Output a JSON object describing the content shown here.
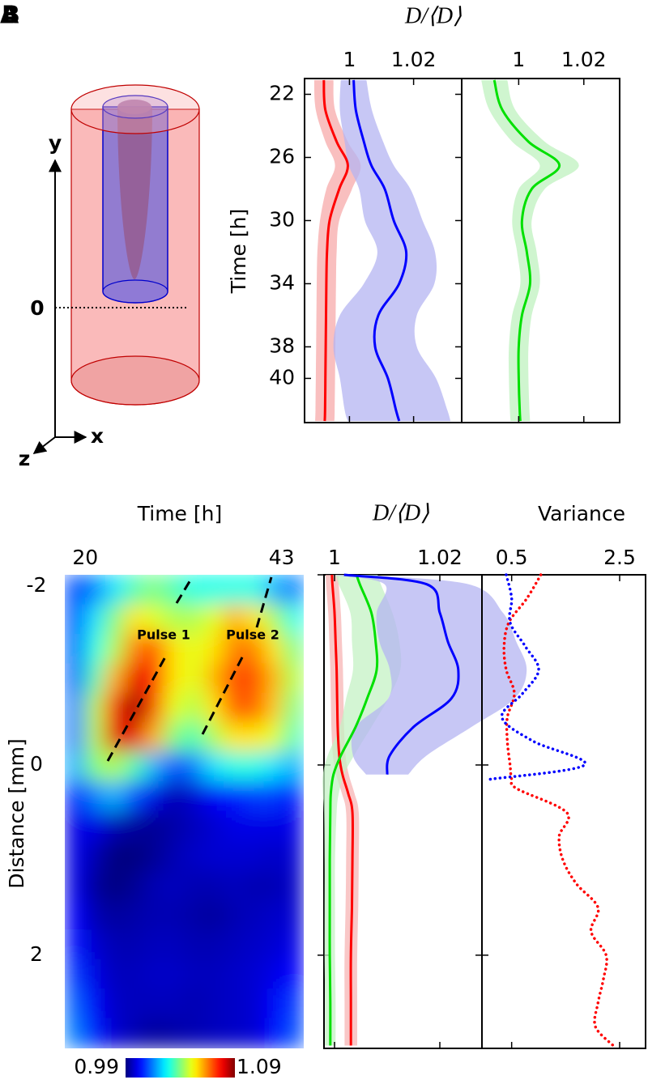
{
  "panel_labels": [
    "A",
    "B"
  ],
  "diagram": {
    "y_axis": "y",
    "origin": "0",
    "x_axis": "x",
    "z_axis": "z"
  },
  "chart_data": [
    {
      "type": "line",
      "xlabel": "D/⟨D⟩",
      "ylabel": "Time [h]",
      "y": [
        21.1,
        23,
        25,
        26.5,
        28,
        30,
        32,
        34,
        36,
        38,
        40,
        42,
        42.7
      ],
      "xlim": [
        0.986,
        1.035
      ],
      "xticks": [
        1,
        1.02
      ],
      "ylim": [
        21,
        42.8
      ],
      "yticks": [
        22,
        26,
        30,
        34,
        38,
        40
      ],
      "series": [
        {
          "color": "#ff0000",
          "band_color": "#f7aaaa",
          "values": [
            0.992,
            0.9925,
            0.996,
            0.9995,
            0.9968,
            0.9938,
            0.993,
            0.9928,
            0.9927,
            0.9926,
            0.9925,
            0.9924,
            0.9923
          ],
          "errors": [
            0.003,
            0.003,
            0.0035,
            0.004,
            0.004,
            0.003,
            0.003,
            0.003,
            0.003,
            0.003,
            0.003,
            0.003,
            0.003
          ]
        },
        {
          "color": "#0000ff",
          "band_color": "#b4b4f2",
          "values": [
            1.0013,
            1.002,
            1.0045,
            1.0068,
            1.011,
            1.0138,
            1.0177,
            1.0155,
            1.009,
            1.008,
            1.012,
            1.0145,
            1.0155
          ],
          "errors": [
            0.004,
            0.005,
            0.006,
            0.007,
            0.008,
            0.009,
            0.009,
            0.011,
            0.012,
            0.013,
            0.015,
            0.016,
            0.016
          ]
        }
      ]
    },
    {
      "type": "line",
      "y": [
        21.1,
        23,
        25,
        26.5,
        28,
        30,
        32,
        34,
        36,
        38,
        40,
        42,
        42.7
      ],
      "xlim": [
        0.9825,
        1.031
      ],
      "xticks": [
        1,
        1.02
      ],
      "ylim": [
        21,
        42.8
      ],
      "series": [
        {
          "color": "#00e000",
          "band_color": "#bff2bf",
          "values": [
            0.9925,
            0.995,
            1.003,
            1.0125,
            1.004,
            1.001,
            1.0025,
            1.0035,
            1.001,
            1.0,
            1.0,
            1.0003,
            1.0005
          ],
          "errors": [
            0.004,
            0.004,
            0.005,
            0.006,
            0.004,
            0.003,
            0.003,
            0.003,
            0.003,
            0.003,
            0.003,
            0.003,
            0.003
          ]
        }
      ]
    },
    {
      "type": "heatmap",
      "xlabel": "Time [h]",
      "ylabel": "Distance [mm]",
      "x": [
        18.8,
        21.1,
        23.4,
        25.8,
        28.1,
        30.4,
        32.8,
        35.1,
        37.4,
        39.8,
        42.1,
        44.4
      ],
      "y": [
        -1.84,
        -1.53,
        -1.22,
        -0.91,
        -0.6,
        -0.29,
        0.02,
        0.33,
        0.64,
        0.96,
        1.27,
        1.58,
        1.89,
        2.2,
        2.51,
        2.82
      ],
      "values": [
        [
          1.01,
          1.015,
          1.025,
          1.035,
          1.04,
          1.035,
          1.03,
          1.03,
          1.03,
          1.03,
          1.02,
          1.015
        ],
        [
          1.01,
          1.025,
          1.04,
          1.055,
          1.05,
          1.045,
          1.045,
          1.05,
          1.06,
          1.055,
          1.045,
          1.03
        ],
        [
          1.012,
          1.03,
          1.045,
          1.065,
          1.07,
          1.055,
          1.05,
          1.055,
          1.065,
          1.065,
          1.055,
          1.04
        ],
        [
          1.012,
          1.035,
          1.06,
          1.08,
          1.075,
          1.055,
          1.05,
          1.06,
          1.07,
          1.07,
          1.06,
          1.045
        ],
        [
          1.015,
          1.045,
          1.075,
          1.088,
          1.07,
          1.05,
          1.045,
          1.055,
          1.068,
          1.068,
          1.058,
          1.04
        ],
        [
          1.015,
          1.045,
          1.08,
          1.08,
          1.06,
          1.04,
          1.035,
          1.045,
          1.055,
          1.055,
          1.05,
          1.035
        ],
        [
          1.02,
          1.04,
          1.045,
          1.035,
          1.02,
          1.01,
          1.015,
          1.025,
          1.03,
          1.03,
          1.025,
          1.02
        ],
        [
          1.005,
          1.015,
          1.02,
          1.01,
          1.0,
          0.995,
          0.998,
          1.002,
          1.005,
          1.008,
          1.008,
          1.005
        ],
        [
          1.0,
          1.0,
          0.995,
          0.993,
          0.992,
          0.994,
          0.996,
          0.998,
          1.0,
          1.0,
          1.0,
          1.0
        ],
        [
          1.0,
          0.995,
          0.99,
          0.99,
          0.992,
          0.995,
          0.997,
          0.998,
          0.998,
          0.998,
          0.997,
          0.998
        ],
        [
          1.0,
          0.993,
          0.99,
          0.992,
          0.995,
          0.996,
          0.995,
          0.995,
          0.996,
          0.995,
          0.995,
          0.997
        ],
        [
          1.002,
          0.995,
          0.993,
          0.994,
          0.995,
          0.995,
          0.994,
          0.993,
          0.995,
          0.996,
          0.997,
          0.998
        ],
        [
          1.005,
          0.998,
          0.995,
          0.995,
          0.996,
          0.996,
          0.995,
          0.995,
          0.996,
          0.997,
          0.998,
          1.0
        ],
        [
          1.008,
          1.0,
          0.996,
          0.996,
          0.997,
          0.997,
          0.996,
          0.996,
          0.997,
          0.998,
          1.0,
          1.003
        ],
        [
          1.012,
          1.002,
          0.997,
          0.996,
          0.996,
          0.996,
          0.995,
          0.996,
          0.997,
          0.998,
          1.002,
          1.008
        ],
        [
          1.015,
          1.005,
          0.998,
          0.995,
          0.993,
          0.994,
          0.995,
          0.996,
          0.997,
          0.998,
          1.003,
          1.01
        ]
      ],
      "xlim": [
        17.6,
        45.6
      ],
      "xticks": [
        20,
        43
      ],
      "ylim": [
        -2,
        2.98
      ],
      "yticks": [
        -2,
        0,
        2
      ],
      "colorbar": {
        "clim": [
          0.99,
          1.09
        ],
        "ticks": [
          0.99,
          1.09
        ]
      },
      "annotations": [
        "Pulse 1",
        "Pulse 2"
      ]
    },
    {
      "type": "line",
      "xlabel": "D/⟨D⟩",
      "y": [
        -2,
        -1.9,
        -1.6,
        -1.3,
        -1.0,
        -0.7,
        -0.4,
        -0.1,
        0.1,
        0.3,
        0.5,
        1,
        1.5,
        2,
        2.5,
        2.95
      ],
      "xlim": [
        0.998,
        1.028
      ],
      "xticks": [
        1,
        1.02
      ],
      "ylim": [
        -2,
        2.98
      ],
      "series": [
        {
          "color": "#ff0000",
          "band_color": "#f7b4b4",
          "values": [
            0.9995,
            0.9996,
            1.0,
            1.0002,
            1.0004,
            1.0005,
            1.0006,
            1.0009,
            1.0015,
            1.0026,
            1.0034,
            1.0034,
            1.0033,
            1.0031,
            1.0031,
            1.0031
          ],
          "errors": [
            0.0012,
            0.0012,
            0.0012,
            0.0012,
            0.0012,
            0.0012,
            0.0012,
            0.0012,
            0.0012,
            0.0012,
            0.0012,
            0.0012,
            0.0012,
            0.0012,
            0.0012,
            0.0012
          ]
        },
        {
          "color": "#00e000",
          "band_color": "#c4f2c4",
          "values": [
            1.0042,
            1.0048,
            1.007,
            1.0078,
            1.008,
            1.0062,
            1.004,
            1.0012,
            0.9998,
            0.9993,
            0.9992,
            0.9991,
            0.9991,
            0.9991,
            0.9992,
            0.9992
          ],
          "errors": [
            0.004,
            0.004,
            0.004,
            0.0045,
            0.0045,
            0.004,
            0.003,
            0.0025,
            0.002,
            0.0015,
            0.0012,
            0.001,
            0.001,
            0.001,
            0.001,
            0.001
          ]
        },
        {
          "color": "#0000ff",
          "band_color": "#b4b4f2",
          "values": [
            1.0018,
            1.0175,
            1.02,
            1.0215,
            1.0235,
            1.0222,
            1.015,
            1.0105,
            1.01,
            null,
            null,
            null,
            null,
            null,
            null,
            null
          ],
          "errors": [
            0.002,
            0.008,
            0.012,
            0.013,
            0.013,
            0.012,
            0.011,
            0.007,
            0.004,
            null,
            null,
            null,
            null,
            null,
            null,
            null
          ]
        }
      ]
    },
    {
      "type": "line",
      "xlabel": "Variance",
      "linestyle": "dotted",
      "y": [
        -2,
        -1.75,
        -1.5,
        -1.25,
        -1.0,
        -0.75,
        -0.5,
        -0.25,
        0,
        0.15,
        0.25,
        0.5,
        0.75,
        1,
        1.25,
        1.5,
        1.75,
        2,
        2.25,
        2.5,
        2.75,
        2.95
      ],
      "xlim": [
        -0.05,
        2.98
      ],
      "xticks": [
        0.5,
        2.5
      ],
      "ylim": [
        -2,
        2.98
      ],
      "series": [
        {
          "color": "#ff0000",
          "values": [
            1.04,
            0.78,
            0.45,
            0.36,
            0.4,
            0.55,
            0.42,
            0.42,
            0.47,
            0.5,
            0.6,
            1.52,
            1.38,
            1.45,
            1.7,
            2.1,
            1.97,
            2.25,
            2.2,
            2.1,
            2.05,
            2.38
          ]
        },
        {
          "color": "#0000ff",
          "values": [
            0.4,
            0.5,
            0.47,
            0.75,
            1.0,
            0.7,
            0.32,
            0.9,
            1.85,
            0.1,
            null,
            null,
            null,
            null,
            null,
            null,
            null,
            null,
            null,
            null,
            null,
            null
          ]
        }
      ]
    }
  ]
}
